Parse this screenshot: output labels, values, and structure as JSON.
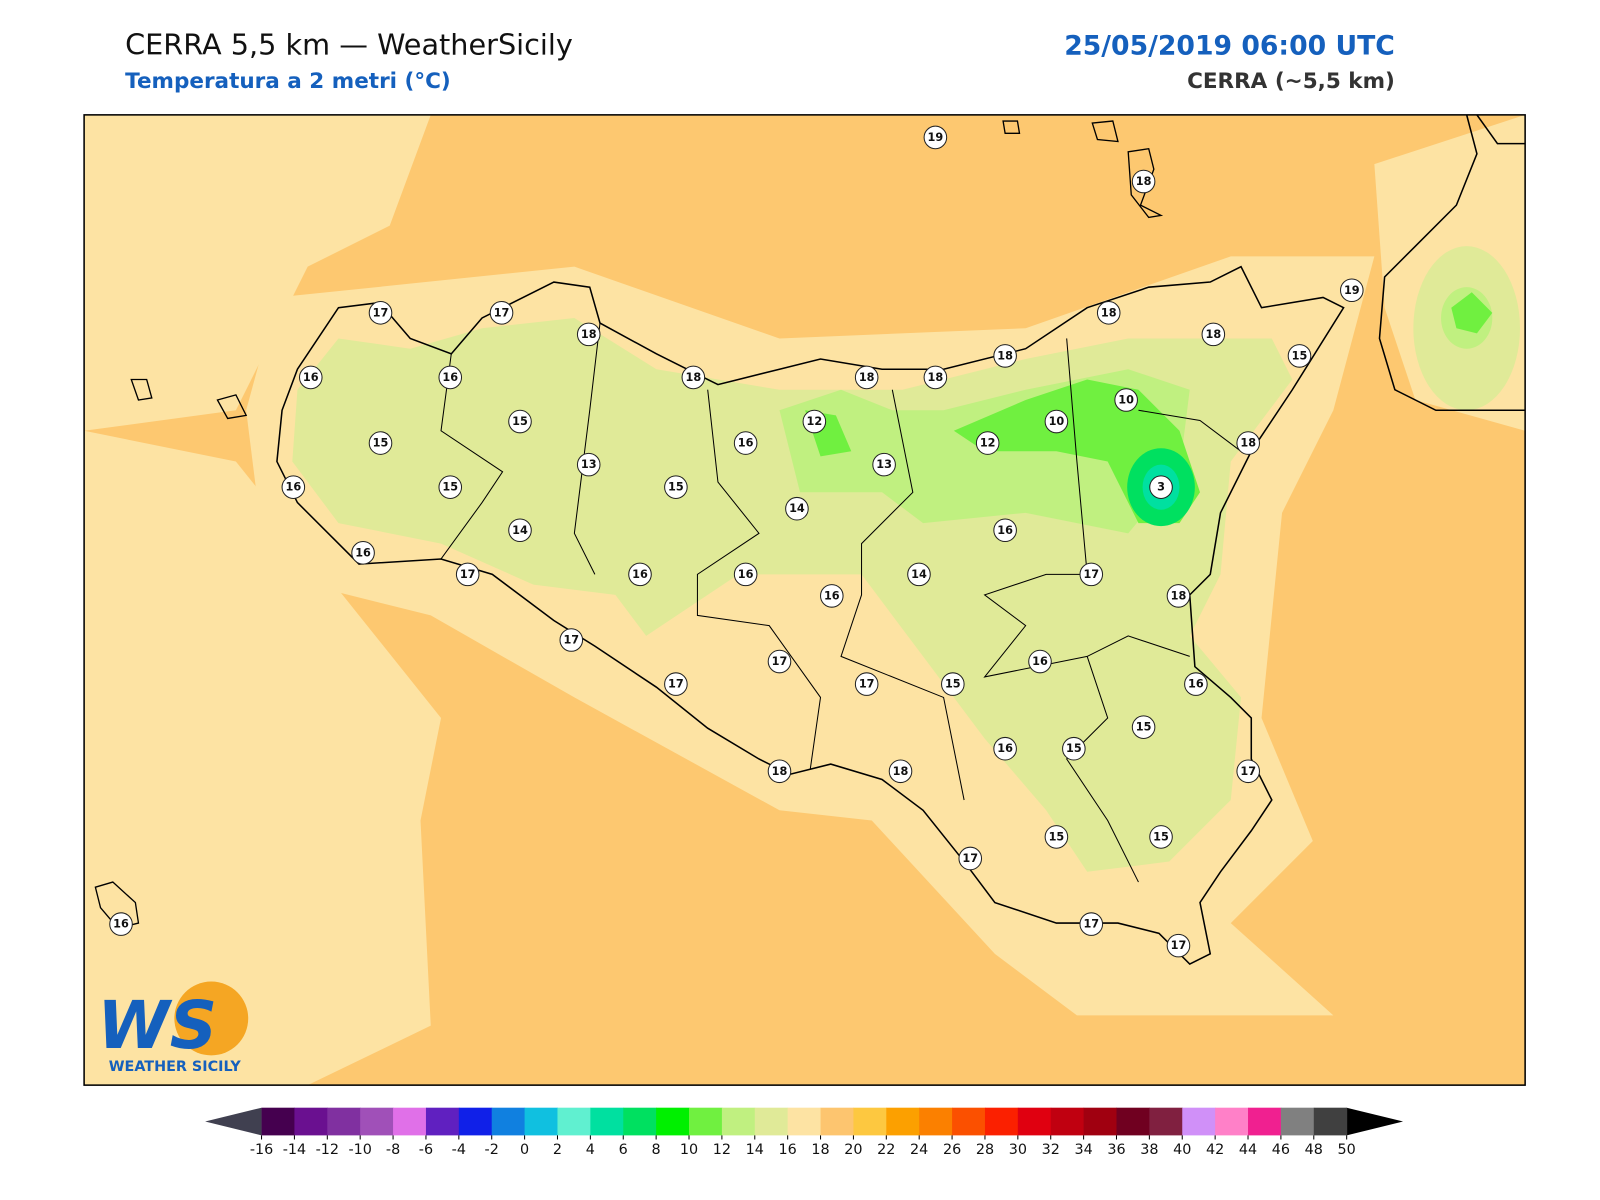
{
  "header": {
    "title": "CERRA 5,5 km — WeatherSicily",
    "subtitle": "Temperatura a 2 metri (°C)",
    "datetime": "25/05/2019 06:00 UTC",
    "source": "CERRA (~5,5 km)"
  },
  "logo": {
    "mark": "WS",
    "text": "WEATHER SICILY"
  },
  "stations": [
    19,
    18,
    19,
    17,
    17,
    18,
    18,
    18,
    15,
    16,
    16,
    18,
    18,
    18,
    18,
    10,
    10,
    12,
    15,
    15,
    16,
    12,
    18,
    13,
    13,
    3,
    16,
    15,
    15,
    14,
    14,
    16,
    16,
    17,
    16,
    16,
    14,
    17,
    16,
    18,
    17,
    17,
    16,
    17,
    17,
    15,
    16,
    15,
    16,
    15,
    18,
    18,
    17,
    15,
    15,
    17,
    17,
    17,
    16
  ],
  "colorbar": {
    "ticks": [
      -16,
      -14,
      -12,
      -10,
      -8,
      -6,
      -4,
      -2,
      0,
      2,
      4,
      6,
      8,
      10,
      12,
      14,
      16,
      18,
      20,
      22,
      24,
      26,
      28,
      30,
      32,
      34,
      36,
      38,
      40,
      42,
      44,
      46,
      48,
      50
    ],
    "colors": [
      "#45004f",
      "#6a1090",
      "#8030a0",
      "#a050b8",
      "#e070e8",
      "#6020c0",
      "#1020e8",
      "#1080e0",
      "#10c0e0",
      "#60f0d0",
      "#00e0a0",
      "#00e060",
      "#00f000",
      "#70f040",
      "#c0f080",
      "#e0ea98",
      "#fde3a3",
      "#fdc56f",
      "#fdc840",
      "#fca000",
      "#fb8000",
      "#fb5000",
      "#fb2000",
      "#e00010",
      "#c00010",
      "#a00010",
      "#700020",
      "#802040",
      "#d090f8",
      "#ff80c8",
      "#f02090",
      "#808080",
      "#404040"
    ],
    "under": "#404050",
    "over": "#000000"
  }
}
